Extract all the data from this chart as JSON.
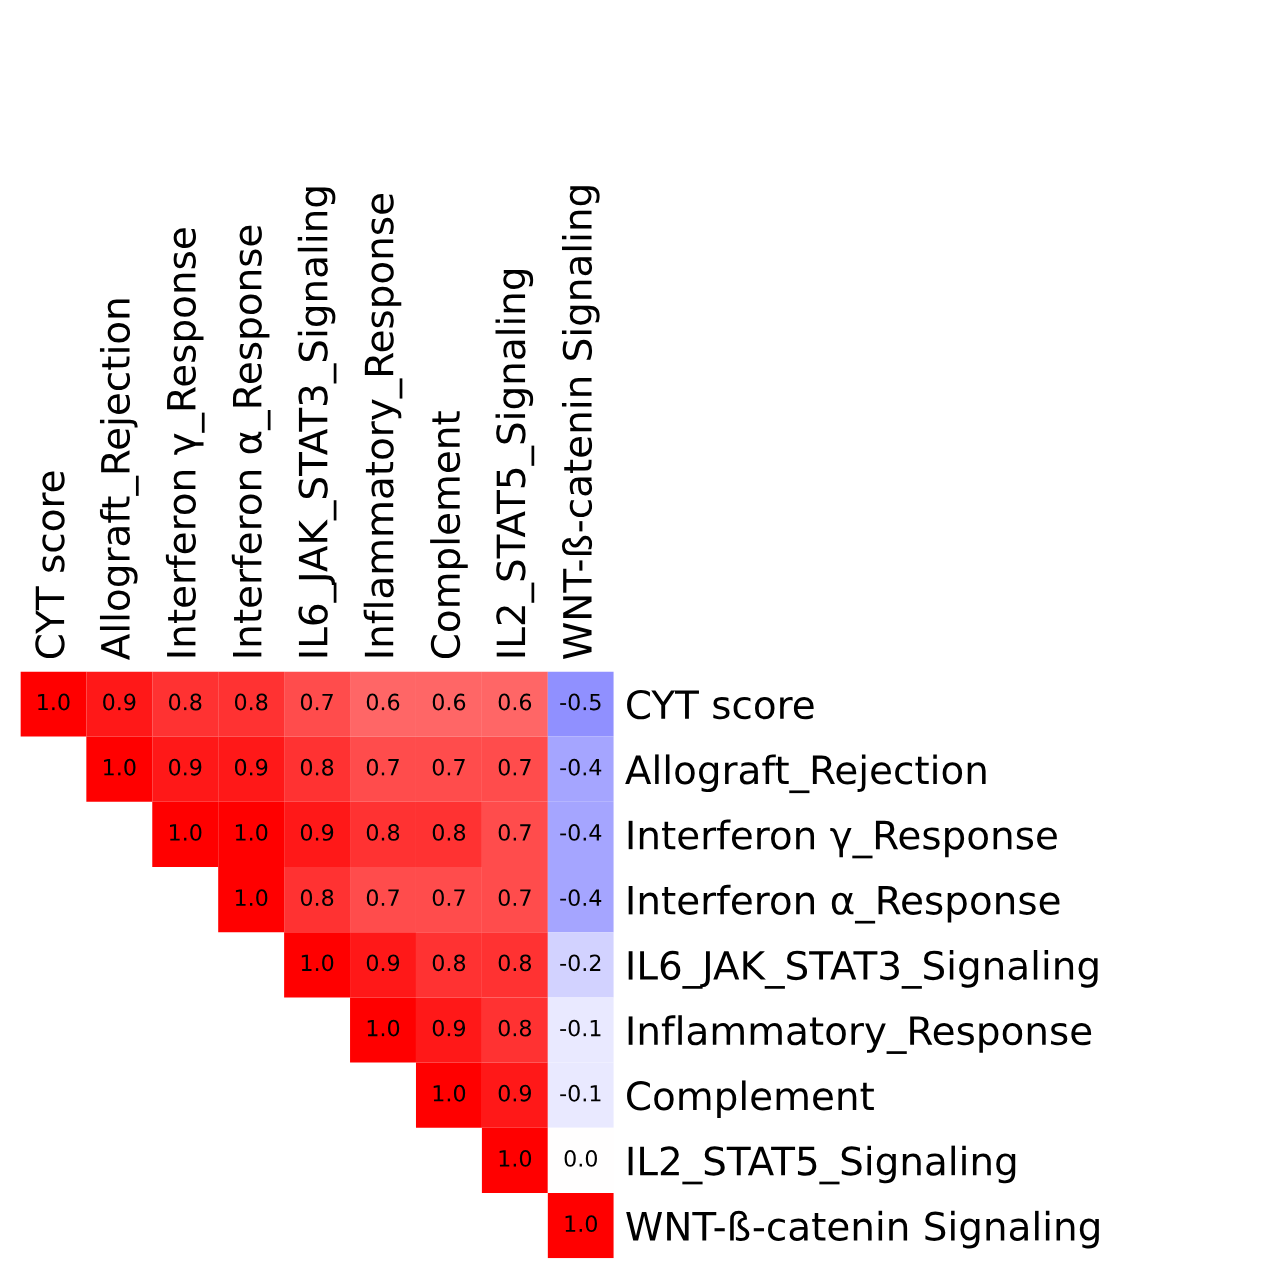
{
  "chart_data": {
    "type": "heatmap",
    "categories": [
      "CYT score",
      "Allograft_Rejection",
      "Interferon γ_Response",
      "Interferon α_Response",
      "IL6_JAK_STAT3_Signaling",
      "Inflammatory_Response",
      "Complement",
      "IL2_STAT5_Signaling",
      "WNT-ß-catenin Signaling"
    ],
    "y_categories": [
      "CYT score",
      "Allograft_Rejection",
      "Interferon γ_Response",
      "Interferon α_Response",
      "IL6_JAK_STAT3_Signaling",
      "Inflammatory_Response",
      "Complement",
      "IL2_STAT5_Signaling",
      "WNT-ß-catenin Signaling"
    ],
    "cells": [
      [
        1.0,
        0.9,
        0.8,
        0.8,
        0.7,
        0.6,
        0.6,
        0.6,
        -0.5
      ],
      [
        null,
        1.0,
        0.9,
        0.9,
        0.8,
        0.7,
        0.7,
        0.7,
        -0.4
      ],
      [
        null,
        null,
        1.0,
        1.0,
        0.9,
        0.8,
        0.8,
        0.7,
        -0.4
      ],
      [
        null,
        null,
        null,
        1.0,
        0.8,
        0.7,
        0.7,
        0.7,
        -0.4
      ],
      [
        null,
        null,
        null,
        null,
        1.0,
        0.9,
        0.8,
        0.8,
        -0.2
      ],
      [
        null,
        null,
        null,
        null,
        null,
        1.0,
        0.9,
        0.8,
        -0.1
      ],
      [
        null,
        null,
        null,
        null,
        null,
        null,
        1.0,
        0.9,
        -0.1
      ],
      [
        null,
        null,
        null,
        null,
        null,
        null,
        null,
        1.0,
        0.0
      ],
      [
        null,
        null,
        null,
        null,
        null,
        null,
        null,
        null,
        1.0
      ]
    ],
    "cell_labels": [
      [
        "1.0",
        "0.9",
        "0.8",
        "0.8",
        "0.7",
        "0.6",
        "0.6",
        "0.6",
        "-0.5"
      ],
      [
        null,
        "1.0",
        "0.9",
        "0.9",
        "0.8",
        "0.7",
        "0.7",
        "0.7",
        "-0.4"
      ],
      [
        null,
        null,
        "1.0",
        "1.0",
        "0.9",
        "0.8",
        "0.8",
        "0.7",
        "-0.4"
      ],
      [
        null,
        null,
        null,
        "1.0",
        "0.8",
        "0.7",
        "0.7",
        "0.7",
        "-0.4"
      ],
      [
        null,
        null,
        null,
        null,
        "1.0",
        "0.9",
        "0.8",
        "0.8",
        "-0.2"
      ],
      [
        null,
        null,
        null,
        null,
        null,
        "1.0",
        "0.9",
        "0.8",
        "-0.1"
      ],
      [
        null,
        null,
        null,
        null,
        null,
        null,
        "1.0",
        "0.9",
        "-0.1"
      ],
      [
        null,
        null,
        null,
        null,
        null,
        null,
        null,
        "1.0",
        "0.0"
      ],
      [
        null,
        null,
        null,
        null,
        null,
        null,
        null,
        null,
        "1.0"
      ]
    ]
  }
}
